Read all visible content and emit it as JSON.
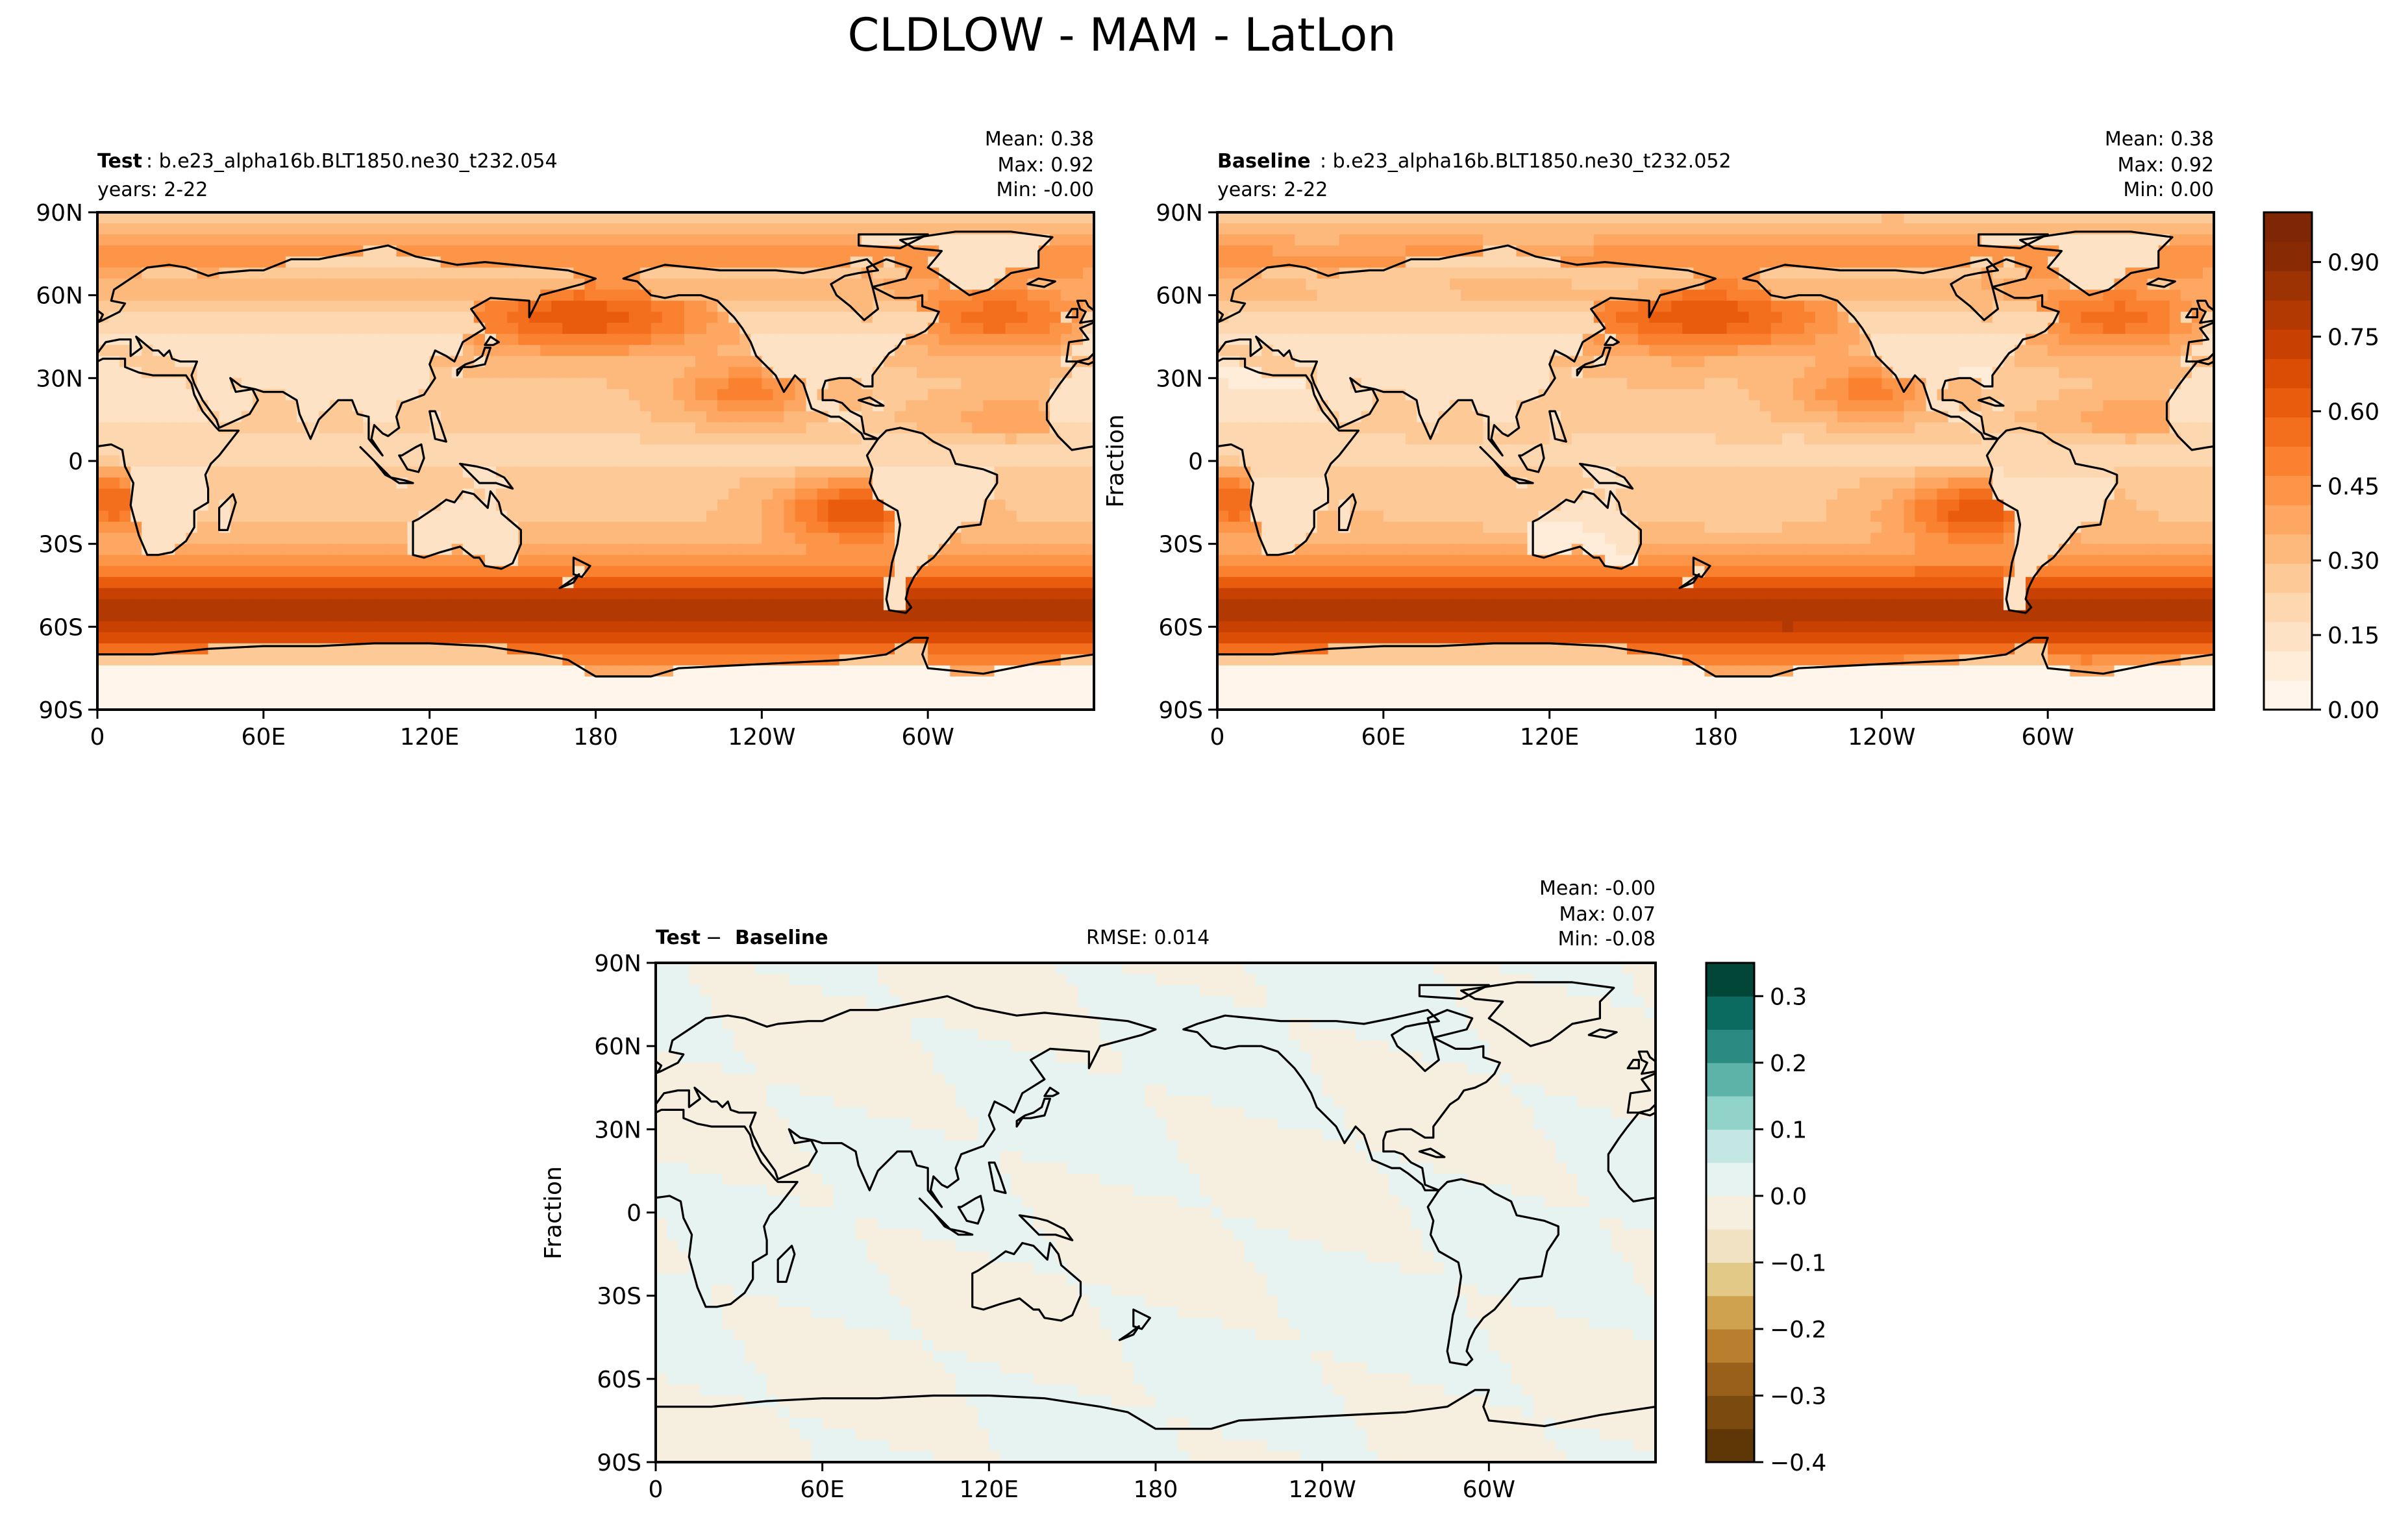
{
  "suptitle": "CLDLOW - MAM - LatLon",
  "chart_data": [
    {
      "type": "heatmap",
      "panel": "test",
      "label_bold": "Test",
      "label_rest": ": b.e23_alpha16b.BLT1850.ne30_t232.054",
      "years": "years: 2-22",
      "stats": [
        "Mean:  0.38",
        "Max:  0.92",
        "Min: -0.00"
      ],
      "mean": 0.38,
      "max": 0.92,
      "min": -0.0,
      "ylabel": "",
      "xticks": [
        "0",
        "60E",
        "120E",
        "180",
        "120W",
        "60W"
      ],
      "yticks": [
        "90N",
        "60N",
        "30N",
        "0",
        "30S",
        "60S",
        "90S"
      ],
      "xlim_deg_east": [
        0,
        360
      ],
      "ylim_deg": [
        -90,
        90
      ],
      "colormap": "Oranges",
      "pattern": "low cloud fraction: high over subtropical eastern oceans, North Pacific/Atlantic and Southern Ocean storm tracks; low over continents and Antarctic interior"
    },
    {
      "type": "heatmap",
      "panel": "baseline",
      "label_bold": "Baseline",
      "label_rest": ": b.e23_alpha16b.BLT1850.ne30_t232.052",
      "years": "years: 2-22",
      "stats": [
        "Mean:  0.38",
        "Max:  0.92",
        "Min:  0.00"
      ],
      "mean": 0.38,
      "max": 0.92,
      "min": 0.0,
      "ylabel": "Fraction",
      "xticks": [
        "0",
        "60E",
        "120E",
        "180",
        "120W",
        "60W"
      ],
      "yticks": [
        "90N",
        "60N",
        "30N",
        "0",
        "30S",
        "60S",
        "90S"
      ],
      "xlim_deg_east": [
        0,
        360
      ],
      "ylim_deg": [
        -90,
        90
      ],
      "colormap": "Oranges",
      "colorbar_ticks": [
        "0.00",
        "0.15",
        "0.30",
        "0.45",
        "0.60",
        "0.75",
        "0.90"
      ],
      "colorbar_range": [
        0,
        1.0
      ]
    },
    {
      "type": "heatmap",
      "panel": "difference",
      "label_bold_1": "Test",
      "label_sep": " − ",
      "label_bold_2": "Baseline",
      "rmse": "RMSE: 0.014",
      "stats": [
        "Mean: -0.00",
        "Max:  0.07",
        "Min: -0.08"
      ],
      "mean": -0.0,
      "max": 0.07,
      "min": -0.08,
      "ylabel": "Fraction",
      "xticks": [
        "0",
        "60E",
        "120E",
        "180",
        "120W",
        "60W"
      ],
      "yticks": [
        "90N",
        "60N",
        "30N",
        "0",
        "30S",
        "60S",
        "90S"
      ],
      "xlim_deg_east": [
        0,
        360
      ],
      "ylim_deg": [
        -90,
        90
      ],
      "colormap": "BrBG",
      "colorbar_ticks": [
        "0.3",
        "0.2",
        "0.1",
        "0.0",
        "−0.1",
        "−0.2",
        "−0.3",
        "−0.4"
      ],
      "colorbar_range": [
        -0.4,
        0.35
      ]
    }
  ],
  "colors": {
    "oranges": [
      "#fff5eb",
      "#ffecd9",
      "#fee2c6",
      "#fdd7b0",
      "#fdc997",
      "#fdb97c",
      "#fda762",
      "#fd9548",
      "#f9812f",
      "#f36f1e",
      "#e95c0d",
      "#db4d04",
      "#c84102",
      "#b33903",
      "#9d3203",
      "#882a04",
      "#7f2704"
    ],
    "diff_pos": [
      "#e6f3f1",
      "#c4e7e3",
      "#92d3c9",
      "#5eb3a8",
      "#2b8b82",
      "#0c6b61",
      "#014636"
    ],
    "diff_neg": [
      "#f6efdf",
      "#f0e2c2",
      "#e2c988",
      "#cfa24f",
      "#b97e2e",
      "#98601a",
      "#7a4a0e",
      "#5f3707"
    ],
    "ocean_pattern_warm": "#b13a03",
    "land_light": "#fff1e2"
  }
}
